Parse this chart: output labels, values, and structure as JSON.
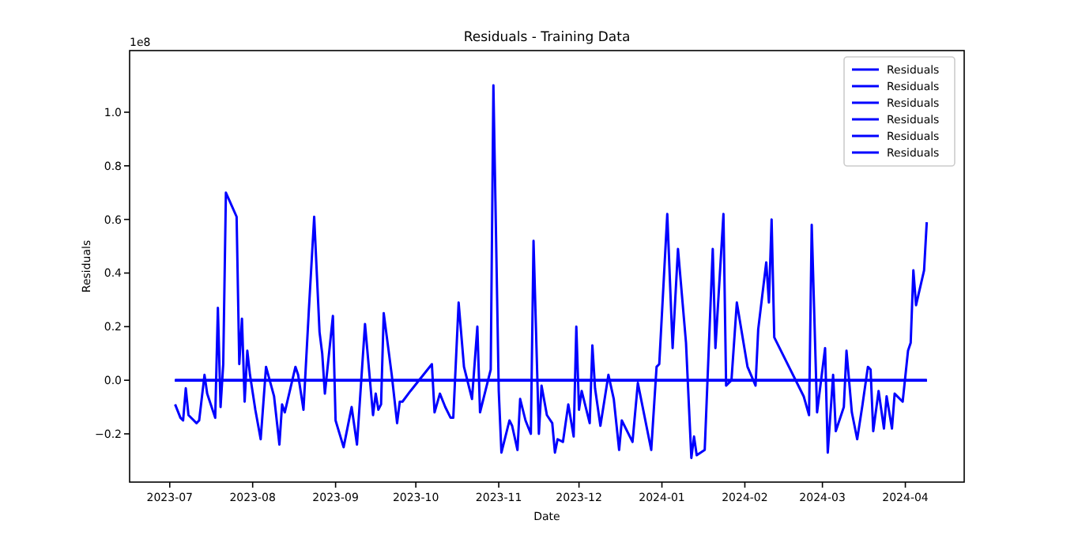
{
  "chart_data": {
    "type": "line",
    "title": "Residuals - Training Data",
    "xlabel": "Date",
    "ylabel": "Residuals",
    "annotations": [
      "1e8"
    ],
    "xlim": [
      "2023-06-16",
      "2024-04-23"
    ],
    "xticks": [
      {
        "value": "2023-07-01",
        "label": "2023-07"
      },
      {
        "value": "2023-08-01",
        "label": "2023-08"
      },
      {
        "value": "2023-09-01",
        "label": "2023-09"
      },
      {
        "value": "2023-10-01",
        "label": "2023-10"
      },
      {
        "value": "2023-11-01",
        "label": "2023-11"
      },
      {
        "value": "2023-12-01",
        "label": "2023-12"
      },
      {
        "value": "2024-01-01",
        "label": "2024-01"
      },
      {
        "value": "2024-02-01",
        "label": "2024-02"
      },
      {
        "value": "2024-03-01",
        "label": "2024-03"
      },
      {
        "value": "2024-04-01",
        "label": "2024-04"
      }
    ],
    "ylim": [
      -0.38,
      1.23
    ],
    "yticks": [
      {
        "value": -0.2,
        "label": "−0.2"
      },
      {
        "value": 0,
        "label": "0.0"
      },
      {
        "value": 0.2,
        "label": "0.2"
      },
      {
        "value": 0.4,
        "label": "0.4"
      },
      {
        "value": 0.6,
        "label": "0.6"
      },
      {
        "value": 0.8,
        "label": "0.8"
      },
      {
        "value": 1,
        "label": "1.0"
      }
    ],
    "legend": "top right",
    "grid": false,
    "line_style": "solid",
    "marker": "none",
    "series": [
      {
        "name": "Residuals",
        "color": "#0000ff",
        "x": [
          "2023-07-03",
          "2023-07-05",
          "2023-07-06",
          "2023-07-07",
          "2023-07-08",
          "2023-07-11",
          "2023-07-12",
          "2023-07-14",
          "2023-07-15",
          "2023-07-18",
          "2023-07-19",
          "2023-07-20",
          "2023-07-21",
          "2023-07-22",
          "2023-07-26",
          "2023-07-27",
          "2023-07-28",
          "2023-07-29",
          "2023-07-30",
          "2023-07-31",
          "2023-08-02",
          "2023-08-04",
          "2023-08-06",
          "2023-08-09",
          "2023-08-11",
          "2023-08-12",
          "2023-08-13",
          "2023-08-17",
          "2023-08-18",
          "2023-08-20",
          "2023-08-22",
          "2023-08-24",
          "2023-08-26",
          "2023-08-27",
          "2023-08-28",
          "2023-08-31",
          "2023-09-01",
          "2023-09-04",
          "2023-09-07",
          "2023-09-09",
          "2023-09-12",
          "2023-09-15",
          "2023-09-16",
          "2023-09-17",
          "2023-09-18",
          "2023-09-19",
          "2023-09-22",
          "2023-09-24",
          "2023-09-25",
          "2023-09-26",
          "2023-09-29",
          "2023-10-07",
          "2023-10-08",
          "2023-10-10",
          "2023-10-12",
          "2023-10-14",
          "2023-10-15",
          "2023-10-17",
          "2023-10-19",
          "2023-10-22",
          "2023-10-24",
          "2023-10-25",
          "2023-10-29",
          "2023-10-30",
          "2023-11-01",
          "2023-11-02",
          "2023-11-05",
          "2023-11-06",
          "2023-11-08",
          "2023-11-09",
          "2023-11-11",
          "2023-11-13",
          "2023-11-14",
          "2023-11-16",
          "2023-11-17",
          "2023-11-19",
          "2023-11-21",
          "2023-11-22",
          "2023-11-23",
          "2023-11-25",
          "2023-11-27",
          "2023-11-29",
          "2023-11-30",
          "2023-12-01",
          "2023-12-02",
          "2023-12-05",
          "2023-12-06",
          "2023-12-07",
          "2023-12-09",
          "2023-12-12",
          "2023-12-14",
          "2023-12-16",
          "2023-12-17",
          "2023-12-21",
          "2023-12-23",
          "2023-12-28",
          "2023-12-30",
          "2023-12-31",
          "2024-01-03",
          "2024-01-05",
          "2024-01-07",
          "2024-01-10",
          "2024-01-12",
          "2024-01-13",
          "2024-01-14",
          "2024-01-17",
          "2024-01-20",
          "2024-01-21",
          "2024-01-24",
          "2024-01-25",
          "2024-01-27",
          "2024-01-29",
          "2024-02-02",
          "2024-02-05",
          "2024-02-06",
          "2024-02-09",
          "2024-02-10",
          "2024-02-11",
          "2024-02-12",
          "2024-02-23",
          "2024-02-25",
          "2024-02-26",
          "2024-02-28",
          "2024-03-02",
          "2024-03-03",
          "2024-03-05",
          "2024-03-06",
          "2024-03-09",
          "2024-03-10",
          "2024-03-12",
          "2024-03-14",
          "2024-03-16",
          "2024-03-18",
          "2024-03-19",
          "2024-03-20",
          "2024-03-22",
          "2024-03-24",
          "2024-03-25",
          "2024-03-27",
          "2024-03-28",
          "2024-03-31",
          "2024-04-02",
          "2024-04-03",
          "2024-04-04",
          "2024-04-05",
          "2024-04-08",
          "2024-04-09"
        ],
        "values": [
          -0.09,
          -0.14,
          -0.15,
          -0.03,
          -0.13,
          -0.16,
          -0.15,
          0.02,
          -0.05,
          -0.14,
          0.27,
          -0.1,
          0.06,
          0.7,
          0.61,
          0.06,
          0.23,
          -0.08,
          0.11,
          0.02,
          -0.11,
          -0.22,
          0.05,
          -0.06,
          -0.24,
          -0.09,
          -0.12,
          0.05,
          0.02,
          -0.11,
          0.26,
          0.61,
          0.18,
          0.1,
          -0.05,
          0.24,
          -0.15,
          -0.25,
          -0.1,
          -0.24,
          0.21,
          -0.13,
          -0.05,
          -0.11,
          -0.09,
          0.25,
          0.02,
          -0.16,
          -0.08,
          -0.08,
          -0.04,
          0.06,
          -0.12,
          -0.05,
          -0.1,
          -0.14,
          -0.14,
          0.29,
          0.05,
          -0.07,
          0.2,
          -0.12,
          0.04,
          1.1,
          -0.04,
          -0.27,
          -0.15,
          -0.17,
          -0.26,
          -0.07,
          -0.15,
          -0.2,
          0.52,
          -0.2,
          -0.02,
          -0.13,
          -0.16,
          -0.27,
          -0.22,
          -0.23,
          -0.09,
          -0.21,
          0.2,
          -0.11,
          -0.04,
          -0.16,
          0.13,
          -0.03,
          -0.17,
          0.02,
          -0.07,
          -0.26,
          -0.15,
          -0.23,
          -0.01,
          -0.26,
          0.05,
          0.06,
          0.62,
          0.12,
          0.49,
          0.14,
          -0.29,
          -0.21,
          -0.28,
          -0.26,
          0.49,
          0.12,
          0.62,
          -0.02,
          0,
          0.29,
          0.05,
          -0.02,
          0.19,
          0.44,
          0.29,
          0.6,
          0.16,
          -0.06,
          -0.13,
          0.58,
          -0.12,
          0.12,
          -0.27,
          0.02,
          -0.19,
          -0.1,
          0.11,
          -0.12,
          -0.22,
          -0.09,
          0.05,
          0.04,
          -0.19,
          -0.04,
          -0.18,
          -0.06,
          -0.18,
          -0.05,
          -0.08,
          0.11,
          0.14,
          0.41,
          0.28,
          0.41,
          0.59
        ]
      },
      {
        "name": "Residuals",
        "color": "#0000ff",
        "x": [
          "2023-07-03",
          "2024-04-09"
        ],
        "values": [
          0,
          0
        ]
      },
      {
        "name": "Residuals",
        "color": "#0000ff",
        "x": [
          "2023-07-03",
          "2024-04-09"
        ],
        "values": [
          0,
          0
        ]
      },
      {
        "name": "Residuals",
        "color": "#0000ff",
        "x": [
          "2023-07-03",
          "2024-04-09"
        ],
        "values": [
          0,
          0
        ]
      },
      {
        "name": "Residuals",
        "color": "#0000ff",
        "x": [
          "2023-07-03",
          "2024-04-09"
        ],
        "values": [
          0,
          0
        ]
      },
      {
        "name": "Residuals",
        "color": "#0000ff",
        "x": [
          "2023-07-03",
          "2024-04-09"
        ],
        "values": [
          0,
          0
        ]
      }
    ]
  }
}
